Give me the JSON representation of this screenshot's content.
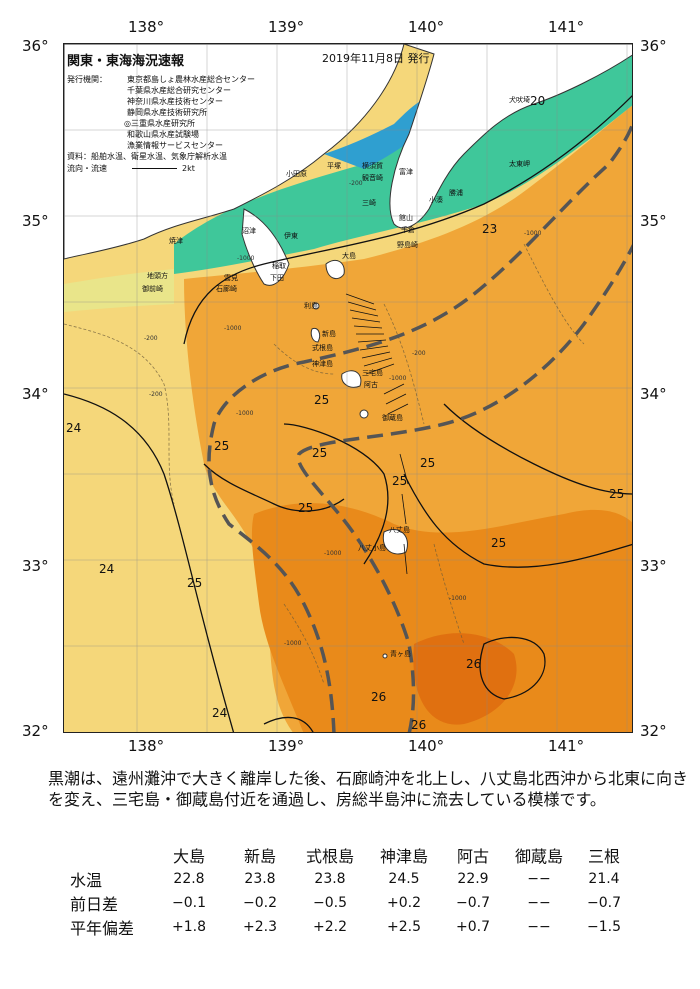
{
  "map": {
    "title": "関東・東海海況速報",
    "issue_date": "2019年11月8日 発行",
    "agencies_label": "発行機関：",
    "agencies": [
      "東京都島しょ農林水産総合センター",
      "千葉県水産総合研究センター",
      "神奈川県水産技術センター",
      "静岡県水産技術研究所",
      "◎三重県水産研究所",
      "和歌山県水産試験場",
      "漁業情報サービスセンター"
    ],
    "sources": "資料：船舶水温、衛星水温、気象庁解析水温",
    "flow_label": "流向・流速",
    "flow_scale": "2kt",
    "lon_ticks": [
      "138°",
      "139°",
      "140°",
      "141°"
    ],
    "lat_ticks": [
      "36°",
      "35°",
      "34°",
      "33°",
      "32°"
    ],
    "isotherm_labels": [
      "20",
      "23",
      "24",
      "24",
      "24",
      "25",
      "25",
      "25",
      "25",
      "25",
      "25",
      "25",
      "25",
      "25",
      "26",
      "26",
      "26"
    ],
    "depth_labels": [
      "-1000",
      "-200",
      "-1000",
      "-200",
      "-1000",
      "-1000",
      "-1000",
      "-1000",
      "-200",
      "-200",
      "-1000",
      "-1000"
    ],
    "places": {
      "inubo": "犬吠埼",
      "taito": "太東岬",
      "katsuura": "勝浦",
      "odawara": "小田原",
      "hiratsuka": "平塚",
      "yokosuka": "横須賀",
      "kannon": "観音崎",
      "futtsu": "富津",
      "miura": "三崎",
      "tateyama": "館山",
      "chikura": "千倉",
      "kotsu": "小湊",
      "nojima": "野島崎",
      "yaizu": "焼津",
      "numazu": "沼津",
      "ito": "伊東",
      "omaezaki": "御前崎",
      "chikyuzaki": "地頭方",
      "inatori": "稲取",
      "shimoda": "下田",
      "mera": "雲見",
      "irozaki": "石廊崎",
      "oshima": "大島",
      "toshima": "利島",
      "niijima": "新島",
      "shikinejima": "式根島",
      "kozushima": "神津島",
      "miyake": "三宅島",
      "ako": "阿古",
      "mikura": "御蔵島",
      "hachijo": "八丈島",
      "hachijo_ko": "八丈小島",
      "aogashima": "青ヶ島"
    }
  },
  "description": "黒潮は、遠州灘沖で大きく離岸した後、石廊崎沖を北上し、八丈島北西沖から北東に向きを変え、三宅島・御蔵島付近を通過し、房総半島沖に流去している模様です。",
  "table": {
    "columns": [
      "大島",
      "新島",
      "式根島",
      "神津島",
      "阿古",
      "御蔵島",
      "三根"
    ],
    "rows": [
      {
        "label": "水温",
        "values": [
          "22.8",
          "23.8",
          "23.8",
          "24.5",
          "22.9",
          "−−",
          "21.4"
        ]
      },
      {
        "label": "前日差",
        "values": [
          "−0.1",
          "−0.2",
          "−0.5",
          "+0.2",
          "−0.7",
          "−−",
          "−0.7"
        ]
      },
      {
        "label": "平年偏差",
        "values": [
          "+1.8",
          "+2.3",
          "+2.2",
          "+2.5",
          "+0.7",
          "−−",
          "−1.5"
        ]
      }
    ]
  },
  "colors": {
    "sea_24": "#f5d77a",
    "sea_25": "#f0a638",
    "sea_26": "#e98a1a",
    "sea_27": "#e07010",
    "coast_20": "#3fc79a",
    "coast_18": "#2f9fd0",
    "land": "#ffffff",
    "kuroshio_axis": "#555555"
  }
}
